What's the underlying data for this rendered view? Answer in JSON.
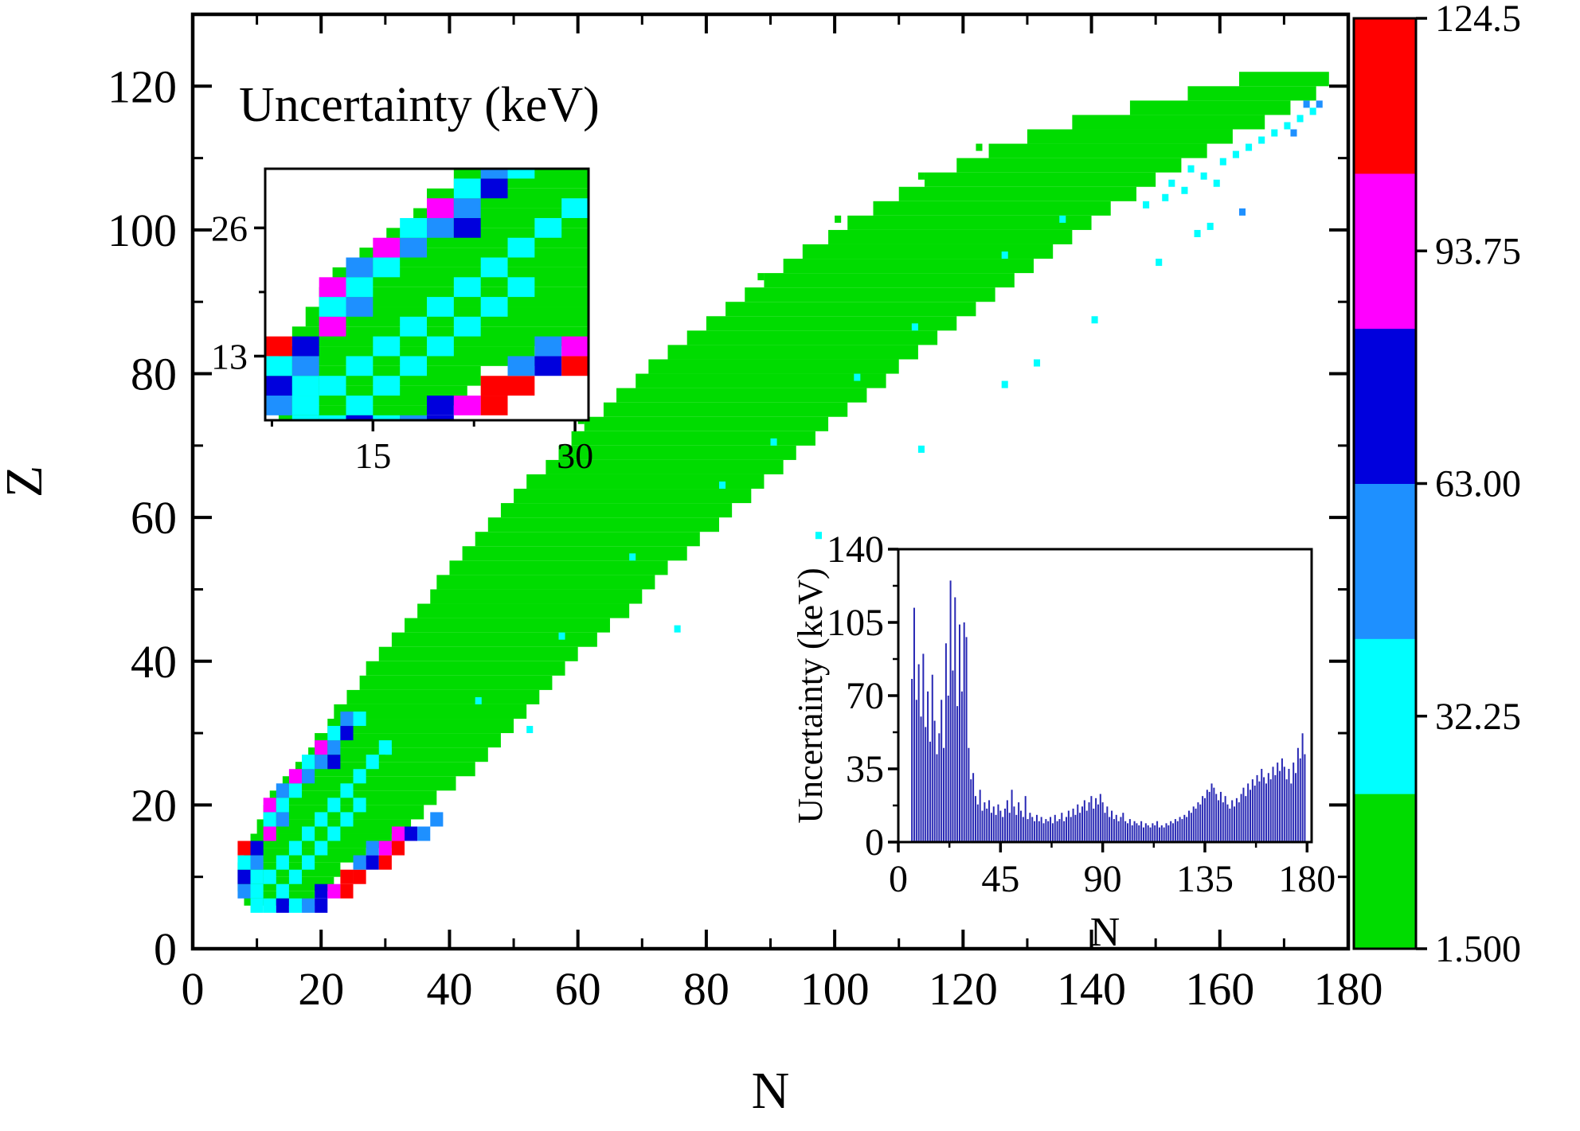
{
  "figure": {
    "title": "Uncertainty (keV)",
    "xlabel": "N",
    "ylabel": "Z"
  },
  "palette": {
    "gr": "#00dc00",
    "cy": "#00ffff",
    "bl": "#1e90ff",
    "nb": "#0000dd",
    "mg": "#ff00ff",
    "rd": "#ff0000",
    "bar": "#2828b4",
    "axis": "#000000",
    "background": "#ffffff"
  },
  "chart_data": [
    {
      "type": "heatmap",
      "title": "Uncertainty (keV)",
      "xlabel": "N",
      "ylabel": "Z",
      "xlim": [
        0,
        180
      ],
      "ylim": [
        0,
        130
      ],
      "xticks": [
        0,
        20,
        40,
        60,
        80,
        100,
        120,
        140,
        160,
        180
      ],
      "yticks": [
        0,
        20,
        40,
        60,
        80,
        100,
        120
      ],
      "x_minor_step": 10,
      "y_minor_step": 10,
      "grid": false,
      "value_unit": "keV",
      "colorbar": {
        "range": [
          1.5,
          124.5
        ],
        "tick_labels": [
          "124.5",
          "93.75",
          "63.00",
          "32.25",
          "1.500"
        ],
        "segment_colors_bottom_to_top": [
          "gr",
          "cy",
          "bl",
          "nb",
          "mg",
          "rd"
        ]
      },
      "band_rows": [
        [
          6,
          8,
          18
        ],
        [
          8,
          7,
          21
        ],
        [
          10,
          7,
          22
        ],
        [
          12,
          8,
          26
        ],
        [
          14,
          9,
          30
        ],
        [
          16,
          10,
          33
        ],
        [
          18,
          11,
          35
        ],
        [
          20,
          12,
          37
        ],
        [
          22,
          14,
          40
        ],
        [
          24,
          16,
          43
        ],
        [
          26,
          18,
          45
        ],
        [
          28,
          19,
          47
        ],
        [
          30,
          21,
          49
        ],
        [
          32,
          22,
          51
        ],
        [
          34,
          24,
          53
        ],
        [
          36,
          26,
          55
        ],
        [
          38,
          27,
          57
        ],
        [
          40,
          29,
          59
        ],
        [
          42,
          31,
          62
        ],
        [
          44,
          33,
          64
        ],
        [
          46,
          35,
          67
        ],
        [
          48,
          37,
          69
        ],
        [
          50,
          38,
          71
        ],
        [
          52,
          40,
          73
        ],
        [
          54,
          42,
          76
        ],
        [
          56,
          44,
          78
        ],
        [
          58,
          46,
          81
        ],
        [
          60,
          48,
          83
        ],
        [
          62,
          50,
          86
        ],
        [
          64,
          52,
          88
        ],
        [
          66,
          55,
          91
        ],
        [
          68,
          57,
          93
        ],
        [
          70,
          59,
          96
        ],
        [
          72,
          61,
          98
        ],
        [
          74,
          64,
          101
        ],
        [
          76,
          66,
          104
        ],
        [
          78,
          69,
          107
        ],
        [
          80,
          71,
          109
        ],
        [
          82,
          74,
          112
        ],
        [
          84,
          77,
          115
        ],
        [
          86,
          80,
          118
        ],
        [
          88,
          83,
          121
        ],
        [
          90,
          86,
          124
        ],
        [
          92,
          89,
          127
        ],
        [
          94,
          92,
          130
        ],
        [
          96,
          95,
          133
        ],
        [
          98,
          99,
          136
        ],
        [
          100,
          102,
          139
        ],
        [
          102,
          106,
          142
        ],
        [
          104,
          110,
          146
        ],
        [
          106,
          114,
          149
        ],
        [
          108,
          119,
          153
        ],
        [
          110,
          124,
          157
        ],
        [
          112,
          130,
          161
        ],
        [
          114,
          137,
          166
        ],
        [
          116,
          146,
          170
        ],
        [
          118,
          155,
          174
        ],
        [
          120,
          163,
          176
        ]
      ],
      "lowmass_cells": [
        [
          7,
          7,
          "bl"
        ],
        [
          7,
          9,
          "nb"
        ],
        [
          7,
          11,
          "cy"
        ],
        [
          7,
          13,
          "rd"
        ],
        [
          9,
          7,
          "cy"
        ],
        [
          9,
          9,
          "cy"
        ],
        [
          9,
          11,
          "bl"
        ],
        [
          9,
          13,
          "nb"
        ],
        [
          11,
          15,
          "mg"
        ],
        [
          11,
          17,
          "cy"
        ],
        [
          11,
          19,
          "mg"
        ],
        [
          13,
          17,
          "bl"
        ],
        [
          13,
          19,
          "cy"
        ],
        [
          13,
          21,
          "bl"
        ],
        [
          15,
          21,
          "cy"
        ],
        [
          15,
          23,
          "mg"
        ],
        [
          17,
          23,
          "bl"
        ],
        [
          17,
          25,
          "cy"
        ],
        [
          19,
          25,
          "bl"
        ],
        [
          19,
          27,
          "mg"
        ],
        [
          21,
          25,
          "nb"
        ],
        [
          21,
          27,
          "bl"
        ],
        [
          21,
          29,
          "cy"
        ],
        [
          23,
          29,
          "nb"
        ],
        [
          23,
          31,
          "bl"
        ],
        [
          25,
          31,
          "cy"
        ],
        [
          11,
          9,
          "cy"
        ],
        [
          13,
          11,
          "cy"
        ],
        [
          15,
          13,
          "cy"
        ],
        [
          17,
          15,
          "cy"
        ],
        [
          19,
          17,
          "cy"
        ],
        [
          21,
          19,
          "cy"
        ],
        [
          23,
          21,
          "cy"
        ],
        [
          25,
          23,
          "cy"
        ],
        [
          27,
          25,
          "cy"
        ],
        [
          29,
          27,
          "cy"
        ],
        [
          13,
          7,
          "cy"
        ],
        [
          15,
          9,
          "cy"
        ],
        [
          17,
          11,
          "cy"
        ],
        [
          19,
          13,
          "cy"
        ],
        [
          21,
          15,
          "cy"
        ],
        [
          23,
          17,
          "cy"
        ],
        [
          25,
          19,
          "cy"
        ],
        [
          9,
          5,
          "cy"
        ],
        [
          11,
          5,
          "cy"
        ],
        [
          13,
          5,
          "nb"
        ],
        [
          15,
          5,
          "cy"
        ],
        [
          17,
          5,
          "bl"
        ],
        [
          19,
          5,
          "nb"
        ],
        [
          19,
          7,
          "nb"
        ],
        [
          21,
          7,
          "mg"
        ],
        [
          23,
          7,
          "rd"
        ],
        [
          23,
          9,
          "rd"
        ],
        [
          25,
          9,
          "rd"
        ],
        [
          25,
          11,
          "bl"
        ],
        [
          27,
          11,
          "nb"
        ],
        [
          27,
          13,
          "bl"
        ],
        [
          29,
          11,
          "rd"
        ],
        [
          29,
          13,
          "mg"
        ],
        [
          31,
          13,
          "rd"
        ],
        [
          31,
          15,
          "mg"
        ],
        [
          33,
          15,
          "nb"
        ],
        [
          35,
          15,
          "bl"
        ],
        [
          37,
          17,
          "bl"
        ]
      ],
      "flecks": [
        [
          52,
          30,
          "cy"
        ],
        [
          75,
          44,
          "cy"
        ],
        [
          97,
          57,
          "cy"
        ],
        [
          113,
          69,
          "cy"
        ],
        [
          126,
          78,
          "cy"
        ],
        [
          131,
          81,
          "cy"
        ],
        [
          140,
          87,
          "cy"
        ],
        [
          150,
          95,
          "cy"
        ],
        [
          156,
          99,
          "cy"
        ],
        [
          158,
          100,
          "cy"
        ],
        [
          30,
          27,
          "cy"
        ],
        [
          44,
          34,
          "cy"
        ],
        [
          57,
          43,
          "cy"
        ],
        [
          68,
          54,
          "cy"
        ],
        [
          82,
          64,
          "cy"
        ],
        [
          90,
          70,
          "cy"
        ],
        [
          103,
          79,
          "cy"
        ],
        [
          112,
          86,
          "cy"
        ],
        [
          126,
          96,
          "cy"
        ],
        [
          135,
          101,
          "cy"
        ],
        [
          148,
          103,
          "cy"
        ],
        [
          151,
          104,
          "cy"
        ],
        [
          154,
          105,
          "cy"
        ],
        [
          157,
          107,
          "cy"
        ],
        [
          159,
          106,
          "cy"
        ],
        [
          160,
          109,
          "cy"
        ],
        [
          162,
          110,
          "cy"
        ],
        [
          164,
          111,
          "cy"
        ],
        [
          166,
          112,
          "cy"
        ],
        [
          168,
          113,
          "cy"
        ],
        [
          170,
          114,
          "cy"
        ],
        [
          172,
          115,
          "cy"
        ],
        [
          174,
          116,
          "cy"
        ],
        [
          152,
          106,
          "cy"
        ],
        [
          155,
          108,
          "cy"
        ],
        [
          173,
          117,
          "bl"
        ],
        [
          175,
          117,
          "bl"
        ],
        [
          163,
          102,
          "bl"
        ],
        [
          171,
          113,
          "bl"
        ],
        [
          60,
          73,
          "gr"
        ],
        [
          88,
          93,
          "gr"
        ],
        [
          100,
          101,
          "gr"
        ],
        [
          113,
          107,
          "gr"
        ],
        [
          122,
          111,
          "gr"
        ]
      ]
    },
    {
      "type": "heatmap",
      "inset": "top-left zoom of light-nuclei region",
      "xlim": [
        7,
        31
      ],
      "ylim": [
        6.5,
        32
      ],
      "xticks": [
        15,
        30
      ],
      "yticks": [
        13,
        26
      ],
      "x_minor_ticks": [
        7.5,
        22.5
      ],
      "y_minor_ticks": [
        6.5,
        19.5,
        32.5
      ],
      "note": "shows same band_rows and lowmass_cells data as main chart"
    },
    {
      "type": "bar",
      "inset": "bottom-right",
      "xlabel": "N",
      "ylabel": "Uncertainty (keV)",
      "xlim": [
        0,
        182
      ],
      "ylim": [
        0,
        140
      ],
      "xticks": [
        0,
        45,
        90,
        135,
        180
      ],
      "yticks": [
        0,
        35,
        70,
        105,
        140
      ],
      "x_minor_step": 22.5,
      "y_minor_step": 17.5,
      "n_start": 6,
      "values": [
        78,
        112,
        68,
        85,
        60,
        90,
        55,
        72,
        48,
        80,
        58,
        42,
        52,
        68,
        45,
        95,
        70,
        125,
        82,
        117,
        65,
        104,
        72,
        105,
        98,
        45,
        30,
        33,
        22,
        18,
        25,
        15,
        19,
        16,
        20,
        14,
        17,
        13,
        18,
        15,
        12,
        16,
        20,
        14,
        25,
        17,
        13,
        19,
        15,
        12,
        22,
        11,
        14,
        12,
        10,
        13,
        10,
        12,
        9,
        11,
        10,
        12,
        9,
        13,
        10,
        11,
        14,
        10,
        12,
        15,
        12,
        16,
        13,
        18,
        14,
        17,
        20,
        15,
        19,
        22,
        16,
        21,
        18,
        23,
        19,
        14,
        17,
        12,
        15,
        11,
        13,
        10,
        12,
        14,
        10,
        9,
        11,
        8,
        10,
        9,
        8,
        10,
        7,
        9,
        8,
        7,
        9,
        8,
        10,
        7,
        8,
        7,
        9,
        8,
        10,
        9,
        11,
        10,
        12,
        11,
        13,
        12,
        15,
        14,
        17,
        16,
        19,
        18,
        22,
        21,
        25,
        24,
        28,
        26,
        23,
        20,
        24,
        19,
        22,
        18,
        16,
        20,
        17,
        21,
        19,
        23,
        26,
        22,
        28,
        25,
        30,
        27,
        32,
        29,
        35,
        31,
        28,
        33,
        30,
        36,
        32,
        38,
        34,
        40,
        36,
        30,
        35,
        28,
        38,
        33,
        45,
        40,
        52,
        42
      ]
    }
  ]
}
